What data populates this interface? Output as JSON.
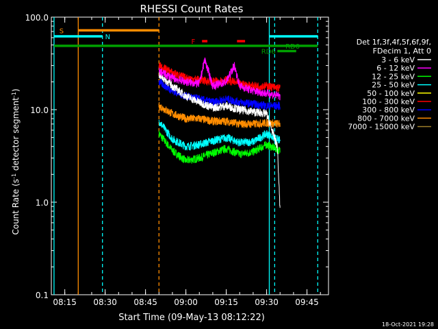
{
  "chart_data": {
    "type": "line",
    "title": "RHESSI Count Rates",
    "xlabel": "Start Time (09-May-13 08:12:22)",
    "ylabel_main": "Count Rate (s",
    "ylabel_sup1": "-1",
    "ylabel_mid": " detector segment",
    "ylabel_sup2": "-1",
    "ylabel_end": ")",
    "yscale": "log",
    "ylim": [
      0.1,
      100
    ],
    "xlim": [
      "08:10:00",
      "09:53:00"
    ],
    "x_ticks": [
      "08:15",
      "08:30",
      "08:45",
      "09:00",
      "09:15",
      "09:30",
      "09:45"
    ],
    "y_ticks": [
      "0.1",
      "1.0",
      "10.0",
      "100.0"
    ],
    "legend_title": [
      "Det 1f,3f,4f,5f,6f,9f,",
      "FDecim 1, Att 0"
    ],
    "series": [
      {
        "name": "3 - 6 keV",
        "color": "#ffffff",
        "start": "08:50",
        "end": "09:35",
        "x": [
          "08:50",
          "08:55",
          "09:00",
          "09:05",
          "09:10",
          "09:15",
          "09:20",
          "09:25",
          "09:30",
          "09:34",
          "09:35"
        ],
        "values": [
          24,
          18,
          14,
          12,
          10.5,
          11,
          10,
          9.5,
          9,
          4,
          0.8
        ]
      },
      {
        "name": "6 - 12 keV",
        "color": "#ff00ff",
        "start": "08:50",
        "end": "09:35",
        "x": [
          "08:50",
          "08:55",
          "09:00",
          "09:05",
          "09:07",
          "09:10",
          "09:15",
          "09:18",
          "09:20",
          "09:25",
          "09:30",
          "09:35"
        ],
        "values": [
          26,
          22,
          20,
          19,
          35,
          18,
          20,
          30,
          18,
          16,
          15,
          14
        ]
      },
      {
        "name": "12 - 25 keV",
        "color": "#00ff00",
        "start": "08:50",
        "end": "09:35",
        "x": [
          "08:50",
          "08:55",
          "09:00",
          "09:05",
          "09:10",
          "09:15",
          "09:20",
          "09:25",
          "09:30",
          "09:35"
        ],
        "values": [
          5.5,
          3.6,
          2.8,
          3.0,
          3.4,
          3.8,
          3.3,
          3.5,
          4.2,
          3.6
        ]
      },
      {
        "name": "25 - 50 keV",
        "color": "#00ffff",
        "start": "08:50",
        "end": "09:35",
        "x": [
          "08:50",
          "08:55",
          "09:00",
          "09:05",
          "09:10",
          "09:15",
          "09:20",
          "09:25",
          "09:30",
          "09:35"
        ],
        "values": [
          7.5,
          4.8,
          4.0,
          4.2,
          4.6,
          5.0,
          4.4,
          4.5,
          5.5,
          4.6
        ]
      },
      {
        "name": "50 - 100 keV",
        "color": "#ffff00",
        "start": "08:50",
        "end": "09:35",
        "x": [
          "08:50",
          "09:35"
        ],
        "values": [
          0,
          0
        ]
      },
      {
        "name": "100 - 300 keV",
        "color": "#ff0000",
        "start": "08:50",
        "end": "09:35",
        "x": [
          "08:50",
          "08:55",
          "09:00",
          "09:05",
          "09:10",
          "09:15",
          "09:20",
          "09:25",
          "09:30",
          "09:35"
        ],
        "values": [
          30,
          25,
          22,
          21,
          20,
          21,
          19,
          18,
          18,
          17
        ]
      },
      {
        "name": "300 - 800 keV",
        "color": "#0000ff",
        "start": "08:50",
        "end": "09:35",
        "x": [
          "08:50",
          "08:55",
          "09:00",
          "09:05",
          "09:10",
          "09:15",
          "09:20",
          "09:25",
          "09:30",
          "09:35"
        ],
        "values": [
          20,
          16,
          14,
          13,
          12,
          13,
          12,
          11.5,
          11,
          11
        ]
      },
      {
        "name": "800 - 7000 keV",
        "color": "#ff8c00",
        "start": "08:50",
        "end": "09:35",
        "x": [
          "08:50",
          "08:55",
          "09:00",
          "09:05",
          "09:10",
          "09:15",
          "09:20",
          "09:25",
          "09:30",
          "09:35"
        ],
        "values": [
          11,
          9,
          8,
          8,
          7.5,
          7.5,
          7,
          7,
          7.2,
          7
        ]
      },
      {
        "name": "7000 - 15000 keV",
        "color": "#9b7d2a",
        "start": "08:50",
        "end": "09:35",
        "x": [
          "08:50",
          "09:35"
        ],
        "values": [
          0,
          0
        ]
      }
    ],
    "vertical_lines": [
      {
        "time": "08:11",
        "color": "#00ffff",
        "style": "solid"
      },
      {
        "time": "08:20",
        "color": "#ff8c00",
        "style": "solid"
      },
      {
        "time": "08:29",
        "color": "#00ffff",
        "style": "dashed"
      },
      {
        "time": "08:50",
        "color": "#ff8c00",
        "style": "dashed"
      },
      {
        "time": "09:31",
        "color": "#00ffff",
        "style": "solid"
      },
      {
        "time": "09:33",
        "color": "#00ffff",
        "style": "dashed"
      },
      {
        "time": "09:49",
        "color": "#00ffff",
        "style": "dashed"
      }
    ],
    "flags": [
      {
        "label": "S",
        "color": "#ff8c00",
        "label_time": "08:13",
        "level": 72,
        "segments": [
          [
            "08:20",
            "08:50"
          ]
        ]
      },
      {
        "label": "N",
        "color": "#00ffff",
        "label_time": "08:30",
        "level": 62,
        "segments": [
          [
            "08:11",
            "08:29"
          ],
          [
            "09:31",
            "09:49"
          ]
        ]
      },
      {
        "label": "F",
        "color": "#ff0000",
        "label_time": "09:02",
        "level": 55,
        "segments": [
          [
            "09:06",
            "09:08"
          ],
          [
            "09:19",
            "09:22"
          ]
        ]
      },
      {
        "label": "RD0",
        "color": "#00a000",
        "label_time": "09:37",
        "level": 49,
        "segments": [
          [
            "08:11",
            "09:49"
          ]
        ]
      },
      {
        "label": "RD6",
        "color": "#00a000",
        "label_time": "09:28",
        "level": 43,
        "segments": [
          [
            "09:34",
            "09:41"
          ]
        ]
      }
    ]
  },
  "footer": {
    "timestamp": "18-Oct-2021 19:28"
  }
}
